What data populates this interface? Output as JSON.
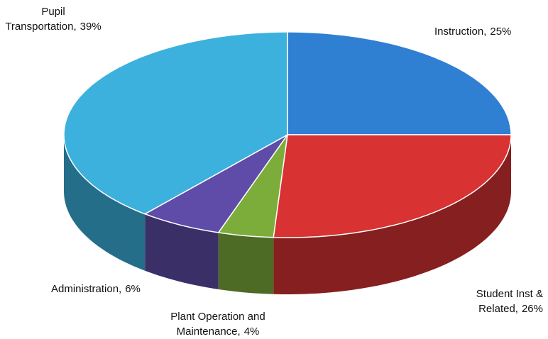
{
  "chart_data": {
    "type": "pie",
    "categories": [
      "Instruction,",
      "Student Inst & Related,",
      "Plant Operation and Maintenance,",
      "Administration,",
      "Pupil Transportation,"
    ],
    "values": [
      25,
      26,
      4,
      6,
      39
    ],
    "value_labels": [
      "25%",
      "26%",
      "4%",
      "6%",
      "39%"
    ],
    "colors": [
      "#2f7fd2",
      "#d83232",
      "#7cad3b",
      "#5f4ba8",
      "#3cb1dd"
    ],
    "start_angle": 0,
    "direction": "clockwise",
    "three_d": true
  }
}
